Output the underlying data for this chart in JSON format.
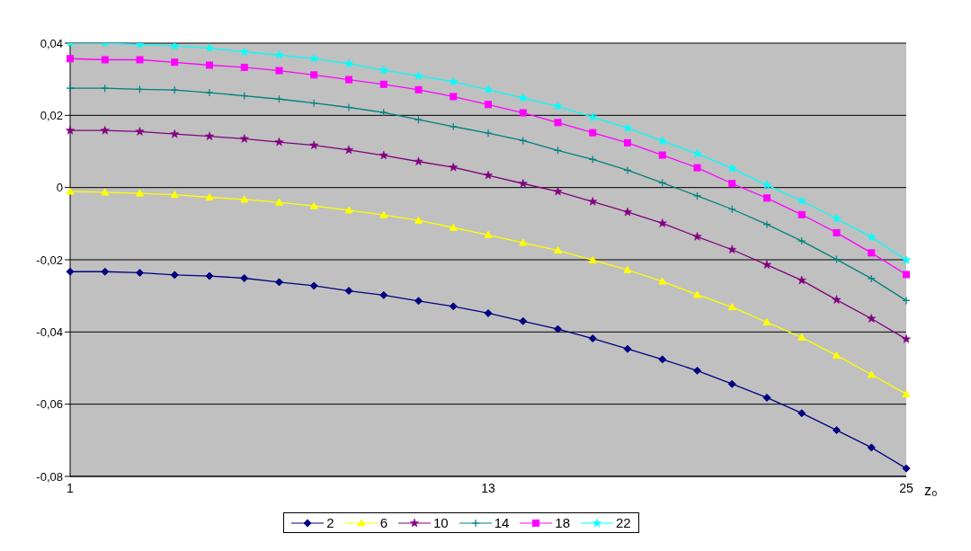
{
  "chart_data": {
    "type": "line",
    "xlabel": "z₀",
    "categories": [
      "1",
      null,
      null,
      null,
      null,
      null,
      null,
      null,
      null,
      null,
      null,
      null,
      "13",
      null,
      null,
      null,
      null,
      null,
      null,
      null,
      null,
      null,
      null,
      null,
      "25"
    ],
    "ylim": [
      -0.08,
      0.04
    ],
    "yticks": [
      {
        "value": -0.08,
        "label": "-0,08"
      },
      {
        "value": -0.06,
        "label": "-0,06"
      },
      {
        "value": -0.04,
        "label": "-0,04"
      },
      {
        "value": -0.02,
        "label": "-0,02"
      },
      0,
      {
        "value": 0.02,
        "label": "0,02"
      },
      {
        "value": 0.04,
        "label": "0,04"
      }
    ],
    "grid": "y",
    "legend": "bottom",
    "line_style": "solid",
    "series": [
      {
        "name": "2",
        "color": "#000080",
        "marker": "diamond",
        "values": [
          -0.0233,
          -0.0233,
          -0.0236,
          -0.0242,
          -0.0245,
          -0.0251,
          -0.0262,
          -0.0272,
          -0.0286,
          -0.0298,
          -0.0314,
          -0.0329,
          -0.0348,
          -0.037,
          -0.0392,
          -0.0418,
          -0.0447,
          -0.0476,
          -0.0507,
          -0.0544,
          -0.0582,
          -0.0625,
          -0.0672,
          -0.072,
          -0.0778
        ]
      },
      {
        "name": "6",
        "color": "#ffff00",
        "marker": "triangle",
        "values": [
          -0.0011,
          -0.0013,
          -0.0016,
          -0.002,
          -0.0027,
          -0.0033,
          -0.0041,
          -0.0051,
          -0.0063,
          -0.0076,
          -0.0091,
          -0.0111,
          -0.0131,
          -0.0153,
          -0.0174,
          -0.0201,
          -0.0228,
          -0.026,
          -0.0297,
          -0.0331,
          -0.0373,
          -0.0415,
          -0.0465,
          -0.0518,
          -0.0572
        ]
      },
      {
        "name": "10",
        "color": "#800080",
        "marker": "star",
        "values": [
          0.0158,
          0.0158,
          0.0155,
          0.0148,
          0.0142,
          0.0135,
          0.0126,
          0.0117,
          0.0104,
          0.0089,
          0.0072,
          0.0056,
          0.0034,
          0.0011,
          -0.0011,
          -0.0039,
          -0.0068,
          -0.0099,
          -0.0136,
          -0.0172,
          -0.0214,
          -0.0257,
          -0.0311,
          -0.0363,
          -0.042
        ]
      },
      {
        "name": "14",
        "color": "#008080",
        "marker": "cross",
        "values": [
          0.0275,
          0.0275,
          0.0272,
          0.027,
          0.0263,
          0.0254,
          0.0245,
          0.0234,
          0.0222,
          0.0208,
          0.0188,
          0.0169,
          0.0151,
          0.013,
          0.0103,
          0.0078,
          0.0048,
          0.0013,
          -0.0023,
          -0.006,
          -0.0102,
          -0.0148,
          -0.0199,
          -0.0252,
          -0.0313
        ]
      },
      {
        "name": "18",
        "color": "#ff00ff",
        "marker": "square",
        "values": [
          0.0357,
          0.0354,
          0.0354,
          0.0347,
          0.0339,
          0.0333,
          0.0324,
          0.0312,
          0.0299,
          0.0286,
          0.0271,
          0.0252,
          0.023,
          0.0207,
          0.018,
          0.0152,
          0.0124,
          0.009,
          0.0055,
          0.0011,
          -0.0029,
          -0.0075,
          -0.0125,
          -0.0181,
          -0.0241
        ]
      },
      {
        "name": "22",
        "color": "#00ffff",
        "marker": "star",
        "values": [
          0.04,
          0.04,
          0.0396,
          0.0392,
          0.0386,
          0.0376,
          0.0367,
          0.0357,
          0.0343,
          0.0325,
          0.0309,
          0.0293,
          0.0271,
          0.0248,
          0.0225,
          0.0195,
          0.0165,
          0.0129,
          0.0094,
          0.0053,
          0.0007,
          -0.0037,
          -0.0086,
          -0.0137,
          -0.0201
        ]
      }
    ]
  }
}
